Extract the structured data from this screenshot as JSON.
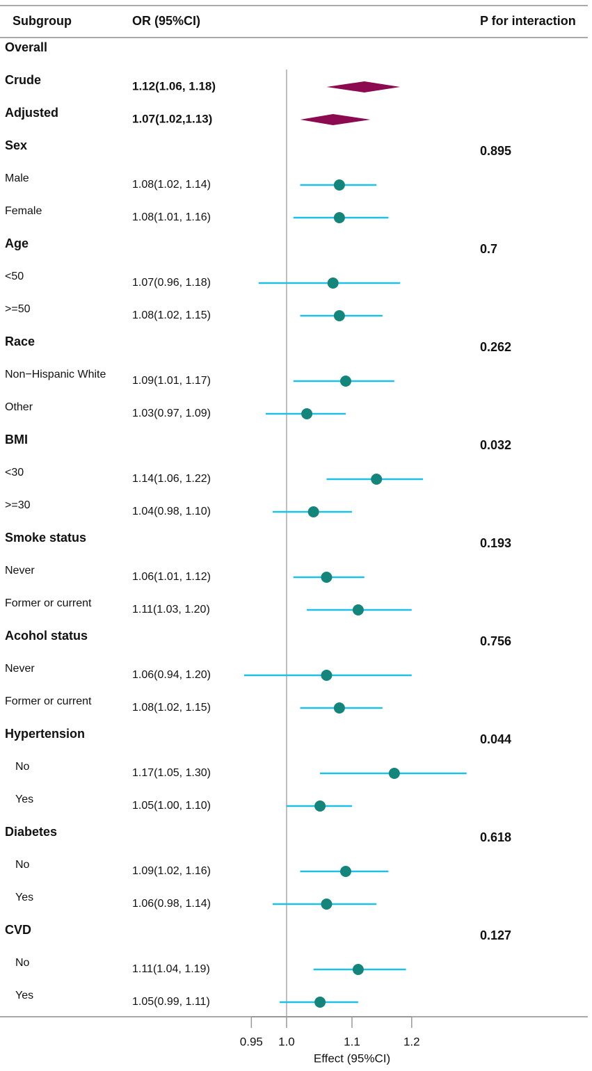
{
  "chart_data": {
    "type": "forest",
    "columns": [
      "Subgroup",
      "OR (95%CI)",
      "P for interaction"
    ],
    "x_label": "Effect (95%CI)",
    "log_x": true,
    "xlim": [
      0.9,
      1.35
    ],
    "xticks": [
      0.95,
      {
        "value": 1,
        "label": "1.0"
      },
      1.1,
      1.2
    ],
    "reference": 1,
    "diamond_color": "#8b0a50",
    "ci_color": "#1ec0e8",
    "point_color": "#14857a",
    "rows": [
      {
        "label": "Overall"
      },
      {
        "label": "Crude",
        "shape": "diamond",
        "or_text": "1.12(1.06, 1.18)",
        "or": 1.12,
        "low": 1.06,
        "high": 1.18
      },
      {
        "label": "Adjusted",
        "shape": "diamond",
        "or_text": "1.07(1.02,1.13)",
        "or": 1.07,
        "low": 1.02,
        "high": 1.13
      },
      {
        "label": "Sex",
        "p": 0.895
      },
      {
        "label": "Male",
        "shape": "point",
        "or_text": "1.08(1.02, 1.14)",
        "or": 1.08,
        "low": 1.02,
        "high": 1.14
      },
      {
        "label": "Female",
        "shape": "point",
        "or_text": "1.08(1.01, 1.16)",
        "or": 1.08,
        "low": 1.01,
        "high": 1.16
      },
      {
        "label": "Age",
        "p": 0.7
      },
      {
        "label": "<50",
        "shape": "point",
        "or_text": "1.07(0.96, 1.18)",
        "or": 1.07,
        "low": 0.96,
        "high": 1.18
      },
      {
        "label": ">=50",
        "shape": "point",
        "or_text": "1.08(1.02, 1.15)",
        "or": 1.08,
        "low": 1.02,
        "high": 1.15
      },
      {
        "label": "Race",
        "p": 0.262
      },
      {
        "label": "Non−Hispanic White",
        "shape": "point",
        "or_text": "1.09(1.01, 1.17)",
        "or": 1.09,
        "low": 1.01,
        "high": 1.17
      },
      {
        "label": "Other",
        "shape": "point",
        "or_text": "1.03(0.97, 1.09)",
        "or": 1.03,
        "low": 0.97,
        "high": 1.09
      },
      {
        "label": "BMI",
        "p": 0.032
      },
      {
        "label": "<30",
        "shape": "point",
        "or_text": "1.14(1.06, 1.22)",
        "or": 1.14,
        "low": 1.06,
        "high": 1.22
      },
      {
        "label": ">=30",
        "shape": "point",
        "or_text": "1.04(0.98, 1.10)",
        "or": 1.04,
        "low": 0.98,
        "high": 1.1
      },
      {
        "label": "Smoke status",
        "p": 0.193
      },
      {
        "label": "Never",
        "shape": "point",
        "or_text": "1.06(1.01, 1.12)",
        "or": 1.06,
        "low": 1.01,
        "high": 1.12
      },
      {
        "label": "Former or current",
        "shape": "point",
        "or_text": "1.11(1.03, 1.20)",
        "or": 1.11,
        "low": 1.03,
        "high": 1.2
      },
      {
        "label": "Acohol status",
        "p": 0.756
      },
      {
        "label": "Never",
        "shape": "point",
        "or_text": "1.06(0.94, 1.20)",
        "or": 1.06,
        "low": 0.94,
        "high": 1.2
      },
      {
        "label": "Former or current",
        "shape": "point",
        "or_text": "1.08(1.02, 1.15)",
        "or": 1.08,
        "low": 1.02,
        "high": 1.15
      },
      {
        "label": "Hypertension",
        "p": 0.044
      },
      {
        "label": "No",
        "shape": "point",
        "or_text": "1.17(1.05, 1.30)",
        "or": 1.17,
        "low": 1.05,
        "high": 1.3
      },
      {
        "label": "Yes",
        "shape": "point",
        "or_text": "1.05(1.00, 1.10)",
        "or": 1.05,
        "low": 1.0,
        "high": 1.1
      },
      {
        "label": "Diabetes",
        "p": 0.618
      },
      {
        "label": "No",
        "shape": "point",
        "or_text": "1.09(1.02, 1.16)",
        "or": 1.09,
        "low": 1.02,
        "high": 1.16
      },
      {
        "label": "Yes",
        "shape": "point",
        "or_text": "1.06(0.98, 1.14)",
        "or": 1.06,
        "low": 0.98,
        "high": 1.14
      },
      {
        "label": "CVD",
        "p": 0.127
      },
      {
        "label": "No",
        "shape": "point",
        "or_text": "1.11(1.04, 1.19)",
        "or": 1.11,
        "low": 1.04,
        "high": 1.19
      },
      {
        "label": "Yes",
        "shape": "point",
        "or_text": "1.05(0.99, 1.11)",
        "or": 1.05,
        "low": 0.99,
        "high": 1.11
      }
    ]
  }
}
